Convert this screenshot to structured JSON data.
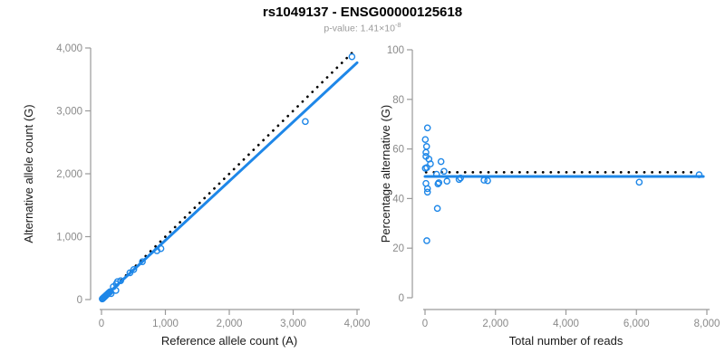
{
  "header": {
    "title": "rs1049137 - ENSG00000125618",
    "subtitle_prefix": "p-value: 1.41×10",
    "subtitle_exponent": "-8"
  },
  "colors": {
    "accent_blue": "#1e87e8",
    "dotted_black": "#000000",
    "tick_gray": "#8a8a8a",
    "axis_gray": "#9a9a9a",
    "label_dark": "#1a1a1a"
  },
  "chart_data": [
    {
      "type": "scatter",
      "name": "allele-count-scatter",
      "xlabel": "Reference allele count (A)",
      "ylabel": "Alternative allele count (G)",
      "xlim": [
        0,
        4000
      ],
      "ylim": [
        0,
        4000
      ],
      "xtick_values": [
        0,
        1000,
        2000,
        3000,
        4000
      ],
      "xtick_labels": [
        "0",
        "1,000",
        "2,000",
        "3,000",
        "4,000"
      ],
      "ytick_values": [
        0,
        1000,
        2000,
        3000,
        4000
      ],
      "ytick_labels": [
        "0",
        "1,000",
        "2,000",
        "3,000",
        "4,000"
      ],
      "grid": false,
      "points": [
        [
          12,
          10
        ],
        [
          18,
          16
        ],
        [
          24,
          20
        ],
        [
          30,
          28,
          1
        ],
        [
          36,
          33
        ],
        [
          45,
          40
        ],
        [
          52,
          48
        ],
        [
          60,
          55,
          1
        ],
        [
          70,
          65
        ],
        [
          80,
          74
        ],
        [
          92,
          85
        ],
        [
          105,
          98
        ],
        [
          118,
          110
        ],
        [
          135,
          125
        ],
        [
          150,
          95
        ],
        [
          185,
          205
        ],
        [
          225,
          145
        ],
        [
          230,
          250
        ],
        [
          250,
          285
        ],
        [
          300,
          300
        ],
        [
          445,
          425
        ],
        [
          505,
          478
        ],
        [
          640,
          602
        ],
        [
          868,
          776
        ],
        [
          930,
          810
        ],
        [
          3190,
          2830
        ],
        [
          3920,
          3860
        ]
      ],
      "fit_line": {
        "x": [
          0,
          4000
        ],
        "y": [
          0,
          3765
        ]
      },
      "reference_line": {
        "x": [
          0,
          3950
        ],
        "y": [
          0,
          3950
        ],
        "style": "dotted"
      }
    },
    {
      "type": "scatter",
      "name": "percentage-alternative-scatter",
      "xlabel": "Total number of reads",
      "ylabel": "Percentage alternative (G)",
      "xlim": [
        0,
        8000
      ],
      "ylim": [
        0,
        100
      ],
      "xtick_values": [
        0,
        2000,
        4000,
        6000,
        8000
      ],
      "xtick_labels": [
        "0",
        "2,000",
        "4,000",
        "6,000",
        "8,000"
      ],
      "ytick_values": [
        0,
        20,
        40,
        60,
        80,
        100
      ],
      "ytick_labels": [
        "0",
        "20",
        "40",
        "60",
        "80",
        "100"
      ],
      "grid": false,
      "points": [
        [
          69,
          68.5
        ],
        [
          8,
          63.8
        ],
        [
          44,
          61
        ],
        [
          26,
          58.6
        ],
        [
          26,
          57
        ],
        [
          51,
          52.5
        ],
        [
          110,
          55.9
        ],
        [
          154,
          54
        ],
        [
          454,
          54.9
        ],
        [
          8,
          52.2
        ],
        [
          538,
          51
        ],
        [
          326,
          49.8
        ],
        [
          1008,
          48.3
        ],
        [
          966,
          47.7
        ],
        [
          623,
          47
        ],
        [
          392,
          46.4
        ],
        [
          367,
          45.9
        ],
        [
          26,
          46.1
        ],
        [
          69,
          44
        ],
        [
          69,
          42.6
        ],
        [
          1675,
          47.4
        ],
        [
          1777,
          47.2
        ],
        [
          350,
          36
        ],
        [
          50,
          23
        ],
        [
          6080,
          46.6
        ],
        [
          7780,
          49.6
        ]
      ],
      "fit_line": {
        "x": [
          0,
          7900
        ],
        "y": [
          48.9,
          48.9
        ]
      },
      "reference_line": {
        "x": [
          30,
          7680
        ],
        "y": [
          50.6,
          50.6
        ],
        "style": "dotted"
      }
    }
  ]
}
